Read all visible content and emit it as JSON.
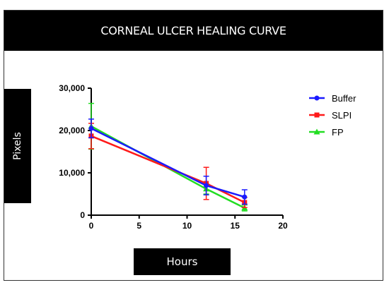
{
  "chart_data": {
    "type": "line",
    "title": "CORNEAL ULCER HEALING CURVE",
    "xlabel": "Hours",
    "ylabel": "Pixels",
    "x": [
      0,
      12,
      16
    ],
    "xlim": [
      0,
      20
    ],
    "ylim": [
      0,
      30000
    ],
    "xticks": [
      0,
      5,
      10,
      15,
      20
    ],
    "xtick_labels": [
      "0",
      "5",
      "10",
      "15",
      "20"
    ],
    "yticks": [
      0,
      10000,
      20000,
      30000
    ],
    "ytick_labels": [
      "0",
      "10,000",
      "20,000",
      "30,000"
    ],
    "grid": false,
    "legend_position": "right",
    "series": [
      {
        "name": "Buffer",
        "color": "#1a1aff",
        "marker": "circle",
        "values": [
          20500,
          7000,
          4300
        ],
        "error": [
          2200,
          2200,
          1700
        ]
      },
      {
        "name": "SLPI",
        "color": "#ff1a1a",
        "marker": "square",
        "values": [
          18700,
          7500,
          3000
        ],
        "error": [
          3000,
          3800,
          1200
        ]
      },
      {
        "name": "FP",
        "color": "#22dd22",
        "marker": "triangle",
        "values": [
          21000,
          6200,
          1700
        ],
        "error": [
          5400,
          1200,
          700
        ]
      }
    ]
  }
}
